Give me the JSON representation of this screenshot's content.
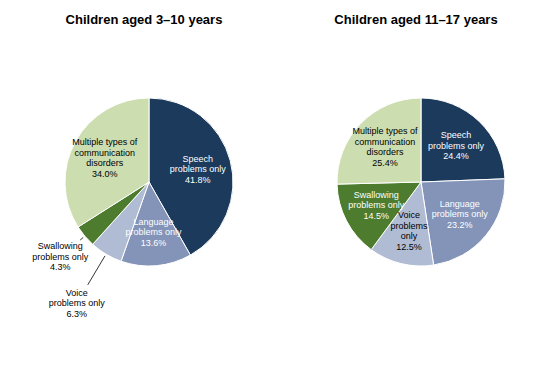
{
  "chart_data": [
    {
      "type": "pie",
      "title": "Children aged 3–10 years",
      "categories": [
        "Speech\nproblems only",
        "Language\nproblems only",
        "Voice\nproblems only",
        "Swallowing\nproblems only",
        "Multiple types of\ncommunication\ndisorders"
      ],
      "values": [
        41.8,
        13.6,
        6.3,
        4.3,
        34.0
      ],
      "value_labels": [
        "41.8%",
        "13.6%",
        "6.3%",
        "4.3%",
        "34.0%"
      ],
      "colors": [
        "#1b3a5c",
        "#8494b8",
        "#b0bcd4",
        "#4d7c2e",
        "#ccddb0"
      ],
      "data_labels": true
    },
    {
      "type": "pie",
      "title": "Children aged 11–17 years",
      "categories": [
        "Speech\nproblems only",
        "Language\nproblems only",
        "Voice\nproblems\nonly",
        "Swallowing\nproblems only",
        "Multiple types of\ncommunication\ndisorders"
      ],
      "values": [
        24.4,
        23.2,
        12.5,
        14.5,
        25.4
      ],
      "value_labels": [
        "24.4%",
        "23.2%",
        "12.5%",
        "14.5%",
        "25.4%"
      ],
      "colors": [
        "#1b3a5c",
        "#8494b8",
        "#b0bcd4",
        "#4d7c2e",
        "#ccddb0"
      ],
      "data_labels": true
    }
  ]
}
